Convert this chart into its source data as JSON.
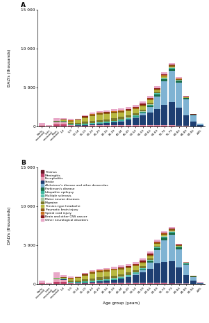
{
  "age_groups": [
    "Early\nneonatal",
    "Late\nneonatal",
    "Post-\nneonatal",
    "1-4",
    "5-9",
    "10-14",
    "15-19",
    "20-24",
    "25-29",
    "30-34",
    "35-39",
    "40-44",
    "45-49",
    "50-54",
    "55-59",
    "60-64",
    "65-69",
    "70-74",
    "75-79",
    "80-84",
    "85-89",
    "90-94",
    "≥95"
  ],
  "conditions": [
    "Tetanus",
    "Meningitis",
    "Encephalitis",
    "Stroke",
    "Alzheimer's disease and other dementias",
    "Parkinson's disease",
    "Idiopathic epilepsy",
    "Multiple sclerosis",
    "Motor neuron diseases",
    "Migraine",
    "Tension-type headache",
    "Traumatic brain injury",
    "Spinal cord injury",
    "Brain and other CNS cancer",
    "Other neurological disorders"
  ],
  "colors": [
    "#6b1a2a",
    "#c0426a",
    "#e8a0b8",
    "#1e3f72",
    "#7fb3d3",
    "#1a6e4a",
    "#3db89e",
    "#5ec4b0",
    "#a8c8a0",
    "#7a7a2a",
    "#b8b840",
    "#8b5a10",
    "#c87020",
    "#8b1a1a",
    "#e8a8c8"
  ],
  "panel_A": {
    "Tetanus": [
      8,
      3,
      25,
      35,
      12,
      6,
      9,
      11,
      13,
      13,
      15,
      15,
      16,
      17,
      18,
      18,
      16,
      14,
      12,
      9,
      6,
      3,
      1
    ],
    "Meningitis": [
      70,
      35,
      220,
      220,
      60,
      45,
      55,
      60,
      65,
      65,
      70,
      70,
      75,
      75,
      80,
      80,
      75,
      70,
      60,
      48,
      32,
      16,
      5
    ],
    "Encephalitis": [
      90,
      35,
      270,
      270,
      90,
      65,
      75,
      85,
      90,
      90,
      95,
      95,
      100,
      100,
      105,
      105,
      95,
      85,
      75,
      58,
      38,
      19,
      6
    ],
    "Stroke": [
      10,
      5,
      20,
      55,
      35,
      35,
      90,
      140,
      200,
      260,
      360,
      500,
      680,
      920,
      1200,
      1600,
      2100,
      2600,
      3000,
      2300,
      1400,
      580,
      150
    ],
    "Alzheimer's disease and other dementias": [
      0,
      0,
      0,
      0,
      0,
      0,
      0,
      0,
      0,
      0,
      5,
      12,
      35,
      100,
      280,
      700,
      1600,
      3000,
      4000,
      3200,
      2000,
      820,
      200
    ],
    "Parkinson's disease": [
      0,
      0,
      0,
      0,
      0,
      0,
      0,
      0,
      0,
      0,
      6,
      12,
      25,
      50,
      95,
      175,
      240,
      290,
      310,
      240,
      155,
      60,
      14
    ],
    "Idiopathic epilepsy": [
      6,
      6,
      90,
      90,
      100,
      90,
      100,
      100,
      100,
      100,
      100,
      100,
      95,
      90,
      90,
      90,
      85,
      80,
      68,
      55,
      34,
      17,
      5
    ],
    "Multiple sclerosis": [
      0,
      0,
      0,
      0,
      6,
      12,
      35,
      45,
      55,
      65,
      70,
      70,
      65,
      60,
      55,
      50,
      40,
      28,
      17,
      9,
      5,
      2,
      1
    ],
    "Motor neuron diseases": [
      0,
      0,
      0,
      0,
      0,
      0,
      6,
      9,
      12,
      17,
      23,
      34,
      46,
      63,
      80,
      92,
      86,
      75,
      57,
      40,
      23,
      9,
      2
    ],
    "Migraine": [
      0,
      0,
      12,
      35,
      140,
      175,
      230,
      290,
      320,
      320,
      320,
      310,
      275,
      230,
      184,
      138,
      92,
      58,
      34,
      17,
      9,
      4,
      1
    ],
    "Tension-type headache": [
      0,
      0,
      12,
      70,
      230,
      345,
      520,
      630,
      690,
      690,
      665,
      620,
      563,
      494,
      414,
      322,
      230,
      150,
      92,
      46,
      23,
      9,
      2
    ],
    "Traumatic brain injury": [
      12,
      6,
      60,
      90,
      90,
      90,
      138,
      161,
      161,
      150,
      150,
      150,
      150,
      150,
      150,
      138,
      126,
      115,
      104,
      80,
      52,
      23,
      7
    ],
    "Spinal cord injury": [
      0,
      0,
      6,
      12,
      17,
      17,
      35,
      46,
      52,
      52,
      52,
      52,
      52,
      52,
      52,
      46,
      40,
      34,
      28,
      20,
      12,
      5,
      1
    ],
    "Brain and other CNS cancer": [
      0,
      0,
      6,
      17,
      17,
      17,
      23,
      29,
      34,
      40,
      52,
      63,
      80,
      98,
      109,
      115,
      109,
      98,
      80,
      57,
      34,
      14,
      4
    ],
    "Other neurological disorders": [
      230,
      115,
      345,
      230,
      230,
      115,
      138,
      161,
      184,
      207,
      230,
      253,
      276,
      299,
      310,
      310,
      276,
      230,
      184,
      138,
      80,
      34,
      11
    ]
  },
  "panel_B": {
    "Tetanus": [
      8,
      3,
      25,
      35,
      12,
      6,
      9,
      11,
      13,
      13,
      15,
      15,
      16,
      17,
      18,
      18,
      16,
      14,
      12,
      9,
      6,
      3,
      1
    ],
    "Meningitis": [
      70,
      35,
      220,
      230,
      60,
      45,
      55,
      60,
      65,
      65,
      70,
      70,
      75,
      75,
      80,
      80,
      75,
      70,
      60,
      48,
      32,
      16,
      5
    ],
    "Encephalitis": [
      90,
      35,
      400,
      280,
      90,
      65,
      75,
      85,
      90,
      90,
      95,
      95,
      100,
      100,
      105,
      105,
      95,
      85,
      75,
      58,
      38,
      19,
      6
    ],
    "Stroke": [
      10,
      5,
      22,
      60,
      38,
      38,
      100,
      155,
      220,
      285,
      400,
      560,
      760,
      1020,
      1330,
      1800,
      2500,
      2700,
      2800,
      2000,
      1100,
      430,
      100
    ],
    "Alzheimer's disease and other dementias": [
      0,
      0,
      0,
      0,
      0,
      0,
      0,
      0,
      0,
      0,
      5,
      12,
      35,
      100,
      260,
      750,
      1700,
      2800,
      3400,
      2400,
      1300,
      460,
      90
    ],
    "Parkinson's disease": [
      0,
      0,
      0,
      0,
      0,
      0,
      0,
      0,
      0,
      0,
      6,
      12,
      25,
      50,
      95,
      175,
      240,
      290,
      310,
      240,
      155,
      60,
      14
    ],
    "Idiopathic epilepsy": [
      6,
      6,
      90,
      110,
      100,
      90,
      100,
      100,
      100,
      100,
      100,
      100,
      95,
      90,
      90,
      90,
      85,
      80,
      68,
      55,
      34,
      17,
      5
    ],
    "Multiple sclerosis": [
      0,
      0,
      0,
      0,
      6,
      12,
      35,
      45,
      55,
      65,
      70,
      70,
      65,
      60,
      55,
      50,
      40,
      28,
      17,
      9,
      5,
      2,
      1
    ],
    "Motor neuron diseases": [
      0,
      0,
      0,
      0,
      0,
      0,
      6,
      9,
      12,
      17,
      23,
      34,
      46,
      63,
      80,
      92,
      86,
      75,
      57,
      40,
      23,
      9,
      2
    ],
    "Migraine": [
      0,
      0,
      12,
      35,
      140,
      175,
      230,
      290,
      320,
      320,
      320,
      310,
      275,
      230,
      184,
      138,
      92,
      58,
      34,
      17,
      9,
      4,
      1
    ],
    "Tension-type headache": [
      0,
      0,
      12,
      70,
      230,
      345,
      520,
      630,
      690,
      690,
      665,
      620,
      563,
      494,
      414,
      322,
      230,
      150,
      92,
      46,
      23,
      9,
      2
    ],
    "Traumatic brain injury": [
      12,
      6,
      60,
      90,
      90,
      90,
      138,
      161,
      161,
      150,
      150,
      150,
      150,
      150,
      150,
      138,
      126,
      115,
      104,
      80,
      52,
      23,
      7
    ],
    "Spinal cord injury": [
      0,
      0,
      6,
      12,
      17,
      17,
      35,
      46,
      52,
      52,
      52,
      52,
      52,
      52,
      52,
      46,
      40,
      34,
      28,
      20,
      12,
      5,
      1
    ],
    "Brain and other CNS cancer": [
      0,
      0,
      6,
      17,
      17,
      17,
      23,
      29,
      34,
      40,
      52,
      63,
      80,
      98,
      109,
      115,
      109,
      98,
      80,
      57,
      34,
      14,
      4
    ],
    "Other neurological disorders": [
      230,
      80,
      700,
      230,
      230,
      115,
      138,
      161,
      184,
      207,
      230,
      253,
      276,
      299,
      310,
      310,
      276,
      230,
      184,
      138,
      80,
      34,
      11
    ]
  },
  "ylabel": "DALYs (thousands)",
  "xlabel": "Age group (years)",
  "ylim": [
    0,
    15000
  ],
  "yticks": [
    0,
    5000,
    10000,
    15000
  ],
  "bg_color": "#ffffff"
}
